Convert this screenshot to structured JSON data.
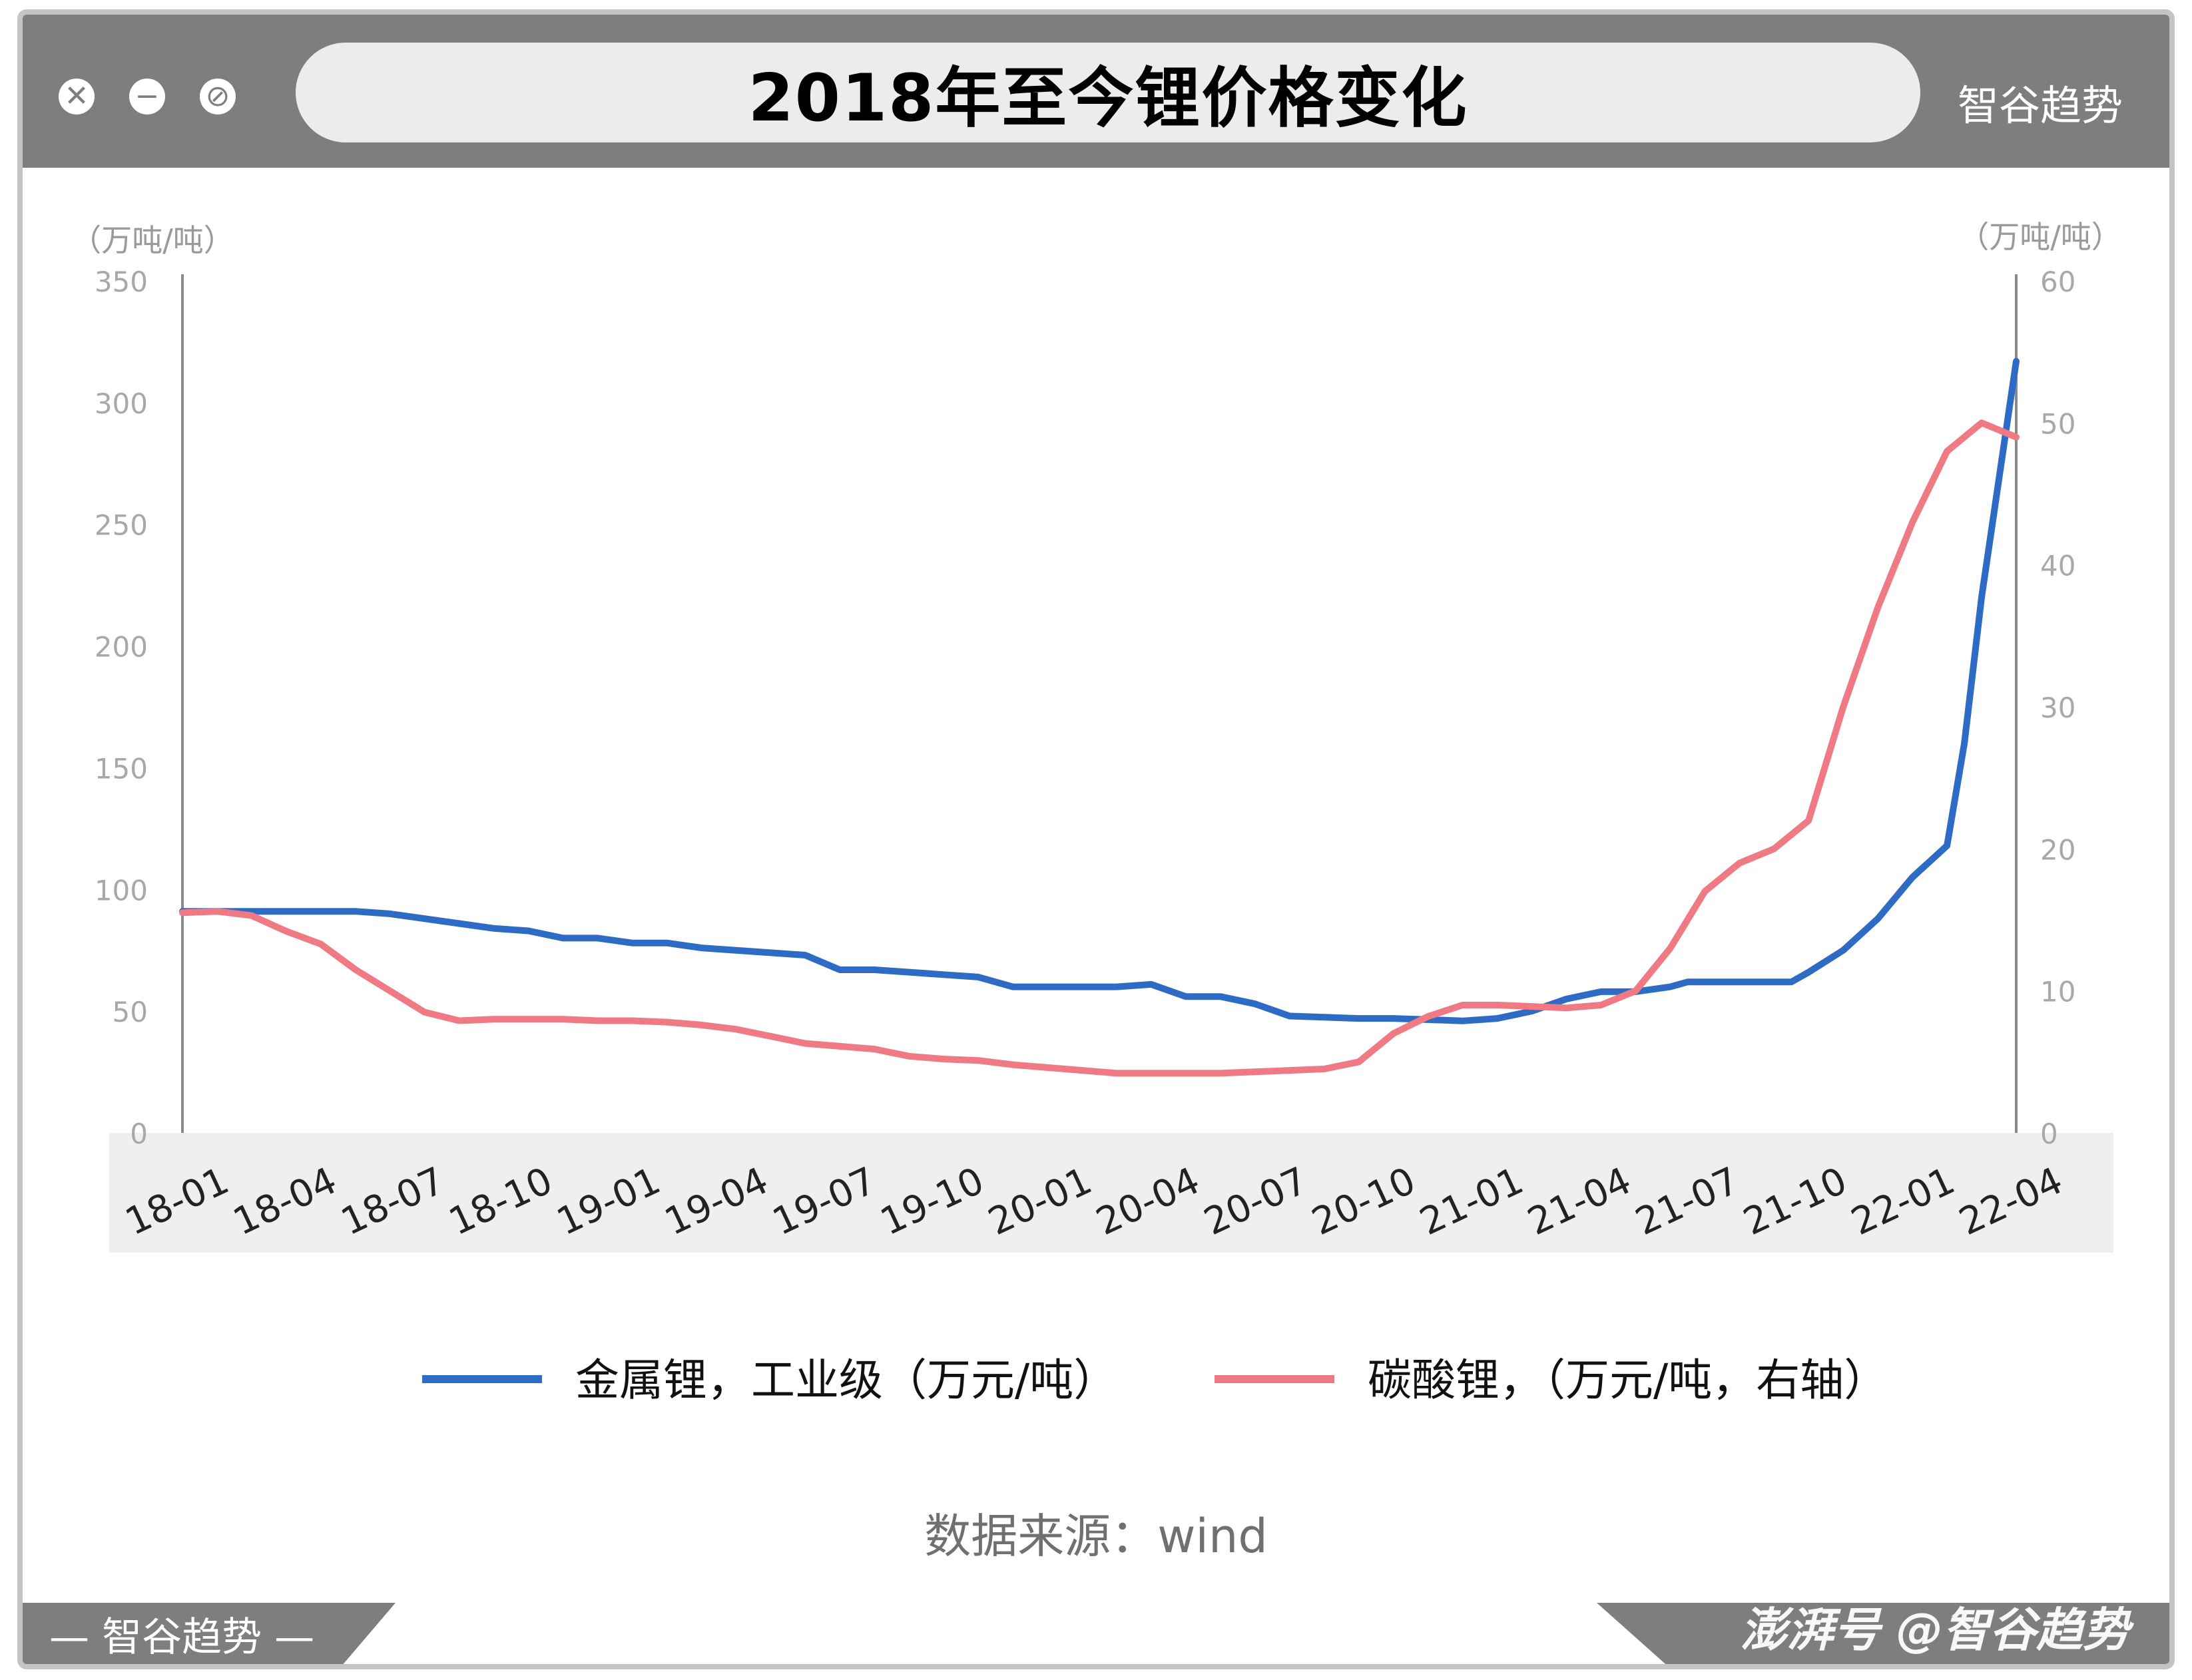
{
  "window": {
    "title": "2018年至今锂价格变化",
    "brand_top": "智谷趋势",
    "brand_bottom": "— 智谷趋势 —",
    "watermark": "澎湃号 @智谷趋势",
    "controls": [
      {
        "name": "close-icon",
        "glyph": "✕"
      },
      {
        "name": "minimize-icon",
        "glyph": "−"
      },
      {
        "name": "block-icon",
        "glyph": "⊘"
      }
    ]
  },
  "source_text": "数据来源：wind",
  "chart_data": {
    "type": "line",
    "title": "2018年至今锂价格变化",
    "left_unit": "（万吨/吨）",
    "right_unit": "（万吨/吨）",
    "x_ticks": [
      "18-01",
      "18-04",
      "18-07",
      "18-10",
      "19-01",
      "19-04",
      "19-07",
      "19-10",
      "20-01",
      "20-04",
      "20-07",
      "20-10",
      "21-01",
      "21-04",
      "21-07",
      "21-10",
      "22-01",
      "22-04"
    ],
    "x_range": [
      0,
      53
    ],
    "y_left": {
      "range": [
        0,
        350
      ],
      "ticks": [
        0,
        50,
        100,
        150,
        200,
        250,
        300,
        350
      ]
    },
    "y_right": {
      "range": [
        0,
        60
      ],
      "ticks": [
        0,
        10,
        20,
        30,
        40,
        50,
        60
      ]
    },
    "grid": false,
    "legend_position": "bottom",
    "series": [
      {
        "name": "金属锂，工业级（万元/吨）",
        "axis": "left",
        "color": "#2e6bc4",
        "x": [
          0,
          1,
          2,
          3,
          4,
          5,
          6,
          7,
          8,
          9,
          10,
          11,
          12,
          13,
          14,
          15,
          16,
          17,
          18,
          19,
          20,
          21,
          22,
          23,
          24,
          25,
          26,
          27,
          28,
          29,
          30,
          31,
          32,
          33,
          34,
          35,
          36,
          37,
          38,
          39,
          40,
          41,
          42,
          43,
          43.5,
          44,
          45,
          46,
          46.5,
          47,
          48,
          49,
          50,
          51,
          51.5,
          52,
          53
        ],
        "values": [
          91,
          91,
          91,
          91,
          91,
          91,
          90,
          88,
          86,
          84,
          83,
          80,
          80,
          78,
          78,
          76,
          75,
          74,
          73,
          67,
          67,
          66,
          65,
          64,
          60,
          60,
          60,
          60,
          61,
          56,
          56,
          53,
          48,
          47.5,
          47,
          47,
          46.5,
          46,
          47,
          50,
          55,
          58,
          58,
          60,
          62,
          62,
          62,
          62,
          62,
          66,
          75,
          88,
          105,
          118,
          160,
          220,
          317
        ]
      },
      {
        "name": "碳酸锂，（万元/吨，右轴）",
        "axis": "right",
        "color": "#f07a84",
        "x": [
          0,
          1,
          2,
          3,
          4,
          5,
          6,
          7,
          8,
          9,
          10,
          11,
          12,
          13,
          14,
          15,
          16,
          17,
          18,
          19,
          20,
          21,
          22,
          23,
          24,
          25,
          26,
          27,
          28,
          29,
          30,
          31,
          32,
          33,
          34,
          35,
          36,
          37,
          38,
          39,
          40,
          41,
          42,
          43,
          44,
          45,
          46,
          47,
          48,
          49,
          50,
          51,
          52,
          53
        ],
        "values": [
          15.5,
          15.6,
          15.3,
          14.2,
          13.3,
          11.5,
          10,
          8.5,
          7.9,
          8,
          8,
          8,
          7.9,
          7.9,
          7.8,
          7.6,
          7.3,
          6.8,
          6.3,
          6.1,
          5.9,
          5.4,
          5.2,
          5.1,
          4.8,
          4.6,
          4.4,
          4.2,
          4.2,
          4.2,
          4.2,
          4.3,
          4.4,
          4.5,
          5,
          7,
          8.2,
          9,
          9,
          8.9,
          8.8,
          9,
          10,
          13,
          17,
          19,
          20,
          22,
          30,
          37,
          43,
          48,
          50,
          49
        ]
      }
    ]
  }
}
